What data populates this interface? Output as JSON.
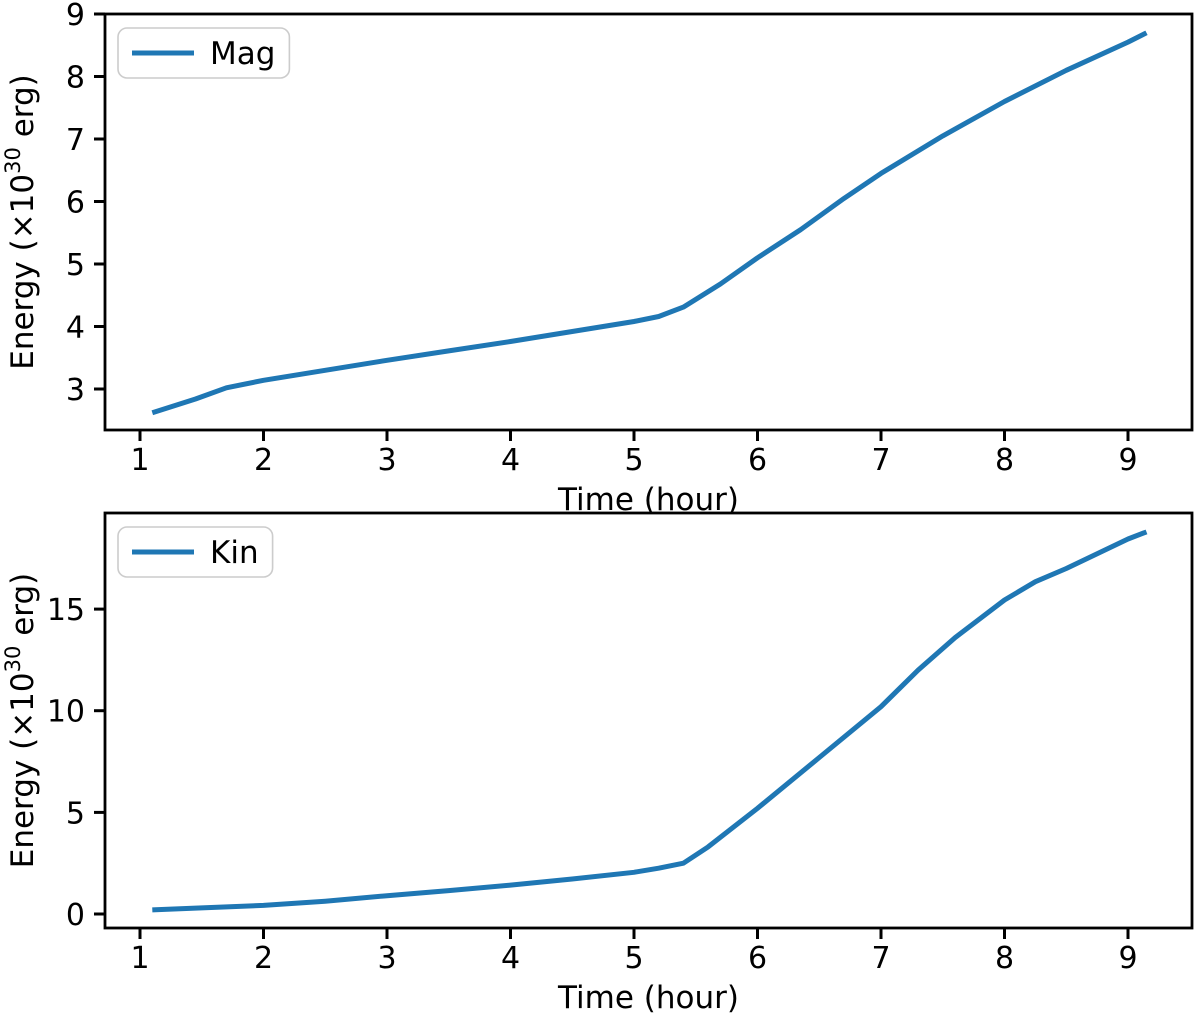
{
  "figure": {
    "background": "#ffffff",
    "accent_line_color": "#1f77b4",
    "text_color": "#000000",
    "legend_border_color": "#cccccc"
  },
  "chart_data": [
    {
      "type": "line",
      "title": "",
      "xlabel": "Time (hour)",
      "ylabel": "Energy (×10³⁰ erg)",
      "ylabel_parts": {
        "base": "Energy (×10",
        "sup": "30",
        "rest": " erg)"
      },
      "legend": {
        "label": "Mag",
        "position": "upper-left"
      },
      "grid": false,
      "xlim": [
        0.717,
        9.518
      ],
      "ylim": [
        2.344,
        9.0
      ],
      "xticks": [
        1,
        2,
        3,
        4,
        5,
        6,
        7,
        8,
        9
      ],
      "yticks": [
        3,
        4,
        5,
        6,
        7,
        8,
        9
      ],
      "series": [
        {
          "name": "Mag",
          "color": "#1f77b4",
          "x": [
            1.1,
            1.45,
            1.7,
            2.0,
            2.5,
            3.0,
            3.5,
            4.0,
            4.5,
            5.0,
            5.2,
            5.4,
            5.7,
            6.0,
            6.35,
            6.7,
            7.0,
            7.5,
            8.0,
            8.5,
            9.0,
            9.15
          ],
          "y": [
            2.62,
            2.84,
            3.02,
            3.14,
            3.3,
            3.46,
            3.61,
            3.76,
            3.92,
            4.08,
            4.16,
            4.31,
            4.68,
            5.1,
            5.55,
            6.05,
            6.45,
            7.05,
            7.6,
            8.1,
            8.55,
            8.7
          ]
        }
      ]
    },
    {
      "type": "line",
      "title": "",
      "xlabel": "Time (hour)",
      "ylabel": "Energy (×10³⁰ erg)",
      "ylabel_parts": {
        "base": "Energy (×10",
        "sup": "30",
        "rest": " erg)"
      },
      "legend": {
        "label": "Kin",
        "position": "upper-left"
      },
      "grid": false,
      "xlim": [
        0.717,
        9.518
      ],
      "ylim": [
        -0.69,
        19.73
      ],
      "xticks": [
        1,
        2,
        3,
        4,
        5,
        6,
        7,
        8,
        9
      ],
      "yticks": [
        0,
        5,
        10,
        15
      ],
      "series": [
        {
          "name": "Kin",
          "color": "#1f77b4",
          "x": [
            1.1,
            1.5,
            2.0,
            2.5,
            3.0,
            3.5,
            4.0,
            4.5,
            5.0,
            5.2,
            5.4,
            5.6,
            6.0,
            6.5,
            7.0,
            7.3,
            7.6,
            8.0,
            8.25,
            8.5,
            9.0,
            9.15
          ],
          "y": [
            0.2,
            0.3,
            0.42,
            0.63,
            0.9,
            1.15,
            1.42,
            1.72,
            2.05,
            2.25,
            2.5,
            3.3,
            5.2,
            7.7,
            10.2,
            12.0,
            13.6,
            15.45,
            16.35,
            17.0,
            18.45,
            18.8
          ]
        }
      ]
    }
  ]
}
